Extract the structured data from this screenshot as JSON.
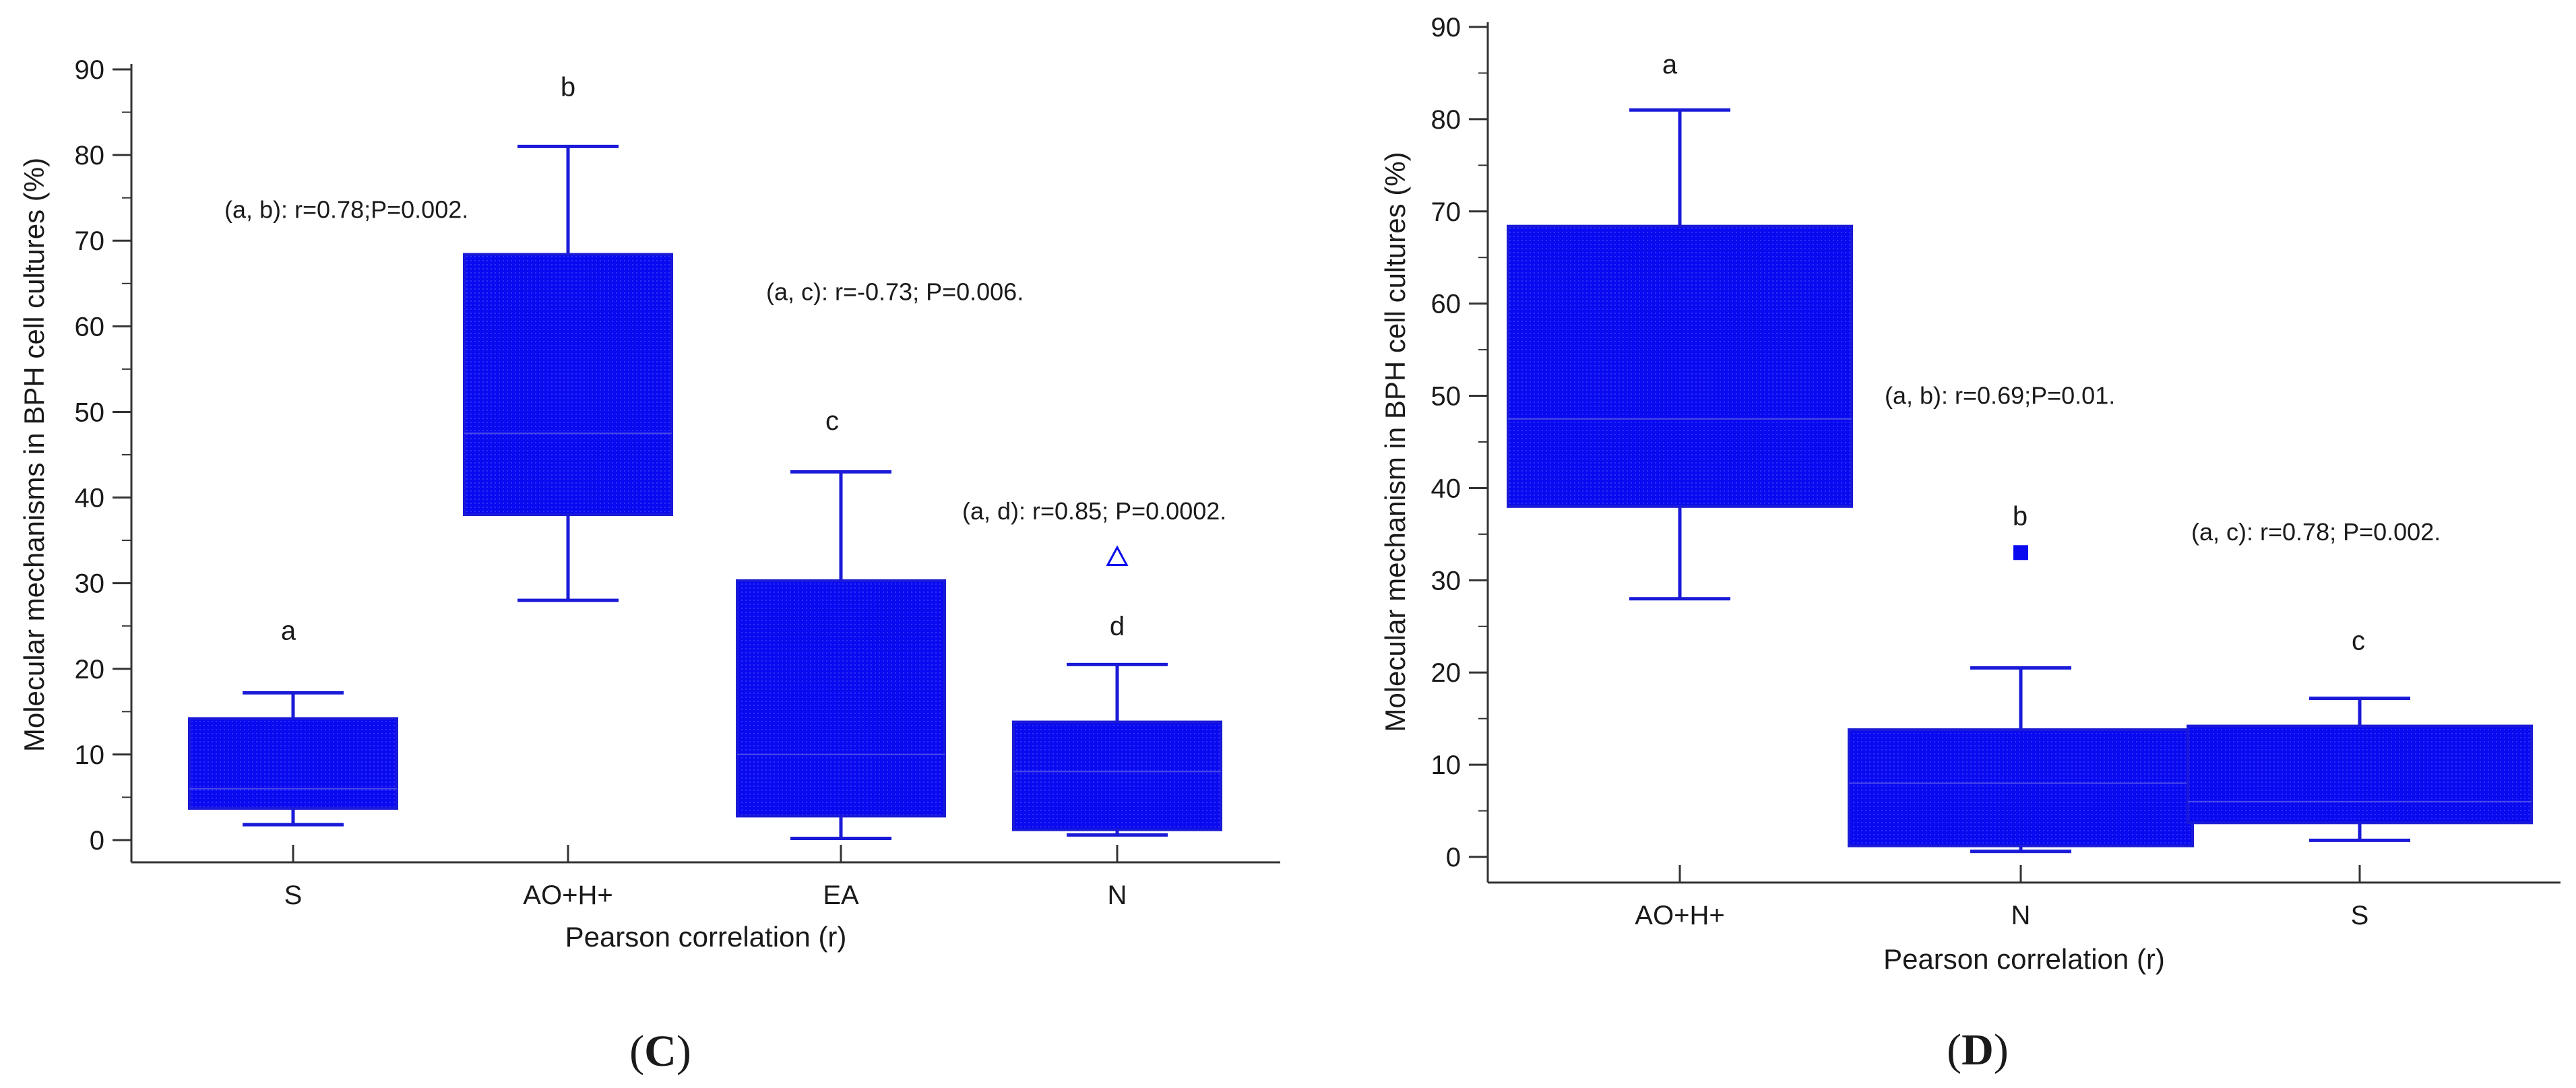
{
  "colors": {
    "box_fill": "#0a0af0",
    "box_stroke": "#1a1ad8",
    "whisker": "#1a1ad8",
    "median": "#4a4ae8",
    "axis": "#333333",
    "text": "#1a1a1a"
  },
  "chart_data": [
    {
      "type": "box",
      "panel_label": "(C)",
      "panel_letter": "C",
      "xlabel": "Pearson correlation (r)",
      "ylabel": "Molecular mechanisms in BPH cell cultures (%)",
      "ylim": [
        0,
        90
      ],
      "yticks": [
        0,
        10,
        20,
        30,
        40,
        50,
        60,
        70,
        80,
        90
      ],
      "categories": [
        "S",
        "AO+H+",
        "EA",
        "N"
      ],
      "boxes": [
        {
          "category": "S",
          "whisker_low": 1.8,
          "q1": 3.7,
          "median": 6.0,
          "q3": 14.2,
          "whisker_high": 17.2,
          "letter": "a"
        },
        {
          "category": "AO+H+",
          "whisker_low": 28.0,
          "q1": 38.0,
          "median": 47.5,
          "q3": 68.4,
          "whisker_high": 81.0,
          "letter": "b"
        },
        {
          "category": "EA",
          "whisker_low": 0.2,
          "q1": 2.8,
          "median": 10.0,
          "q3": 30.3,
          "whisker_high": 43.0,
          "letter": "c"
        },
        {
          "category": "N",
          "whisker_low": 0.6,
          "q1": 1.2,
          "median": 8.0,
          "q3": 13.8,
          "whisker_high": 20.5,
          "letter": "d",
          "outlier": 33.0,
          "outlier_marker": "open-triangle"
        }
      ],
      "annotations": [
        {
          "text": "(a, b): r=0.78;P=0.002."
        },
        {
          "text": "(a, c): r=-0.73; P=0.006."
        },
        {
          "text": "(a, d): r=0.85; P=0.0002."
        }
      ]
    },
    {
      "type": "box",
      "panel_label": "(D)",
      "panel_letter": "D",
      "xlabel": "Pearson correlation (r)",
      "ylabel": "Molecular mechanism in BPH cell cultures (%)",
      "ylim": [
        0,
        90
      ],
      "yticks": [
        0,
        10,
        20,
        30,
        40,
        50,
        60,
        70,
        80,
        90
      ],
      "categories": [
        "AO+H+",
        "N",
        "S"
      ],
      "boxes": [
        {
          "category": "AO+H+",
          "whisker_low": 28.0,
          "q1": 38.0,
          "median": 47.5,
          "q3": 68.4,
          "whisker_high": 81.0,
          "letter": "a"
        },
        {
          "category": "N",
          "whisker_low": 0.6,
          "q1": 1.2,
          "median": 8.0,
          "q3": 13.8,
          "whisker_high": 20.5,
          "letter": "b",
          "outlier": 33.0,
          "outlier_marker": "filled-square"
        },
        {
          "category": "S",
          "whisker_low": 1.8,
          "q1": 3.7,
          "median": 6.0,
          "q3": 14.2,
          "whisker_high": 17.2,
          "letter": "c"
        }
      ],
      "annotations": [
        {
          "text": "(a, b): r=0.69;P=0.01."
        },
        {
          "text": "(a, c): r=0.78; P=0.002."
        }
      ]
    }
  ]
}
